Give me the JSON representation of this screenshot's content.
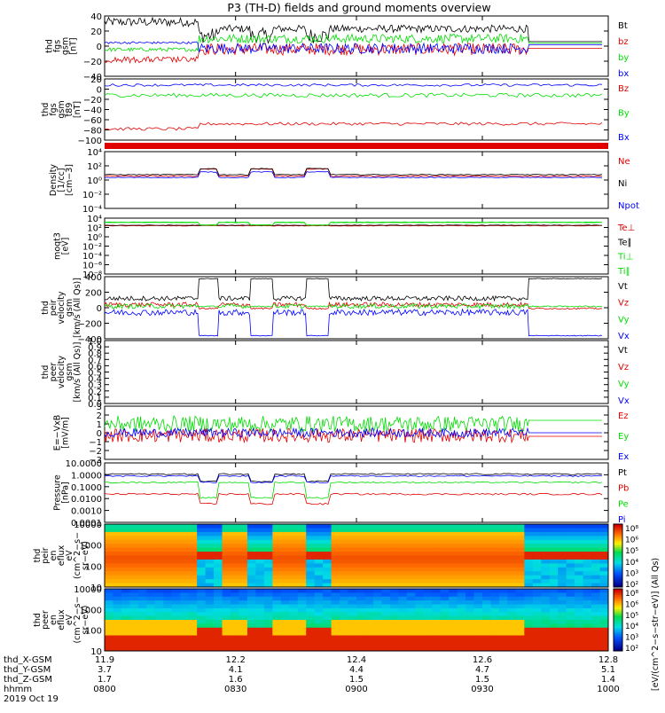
{
  "title": "P3 (TH-D) fields and ground moments overview",
  "colors": {
    "black": "#000000",
    "red": "#e00000",
    "green": "#00dd00",
    "blue": "#0000ff"
  },
  "chart_data": [
    {
      "id": "fgs",
      "type": "line",
      "ylabel": [
        "thd",
        "fgs",
        "gsm",
        "[nT]"
      ],
      "ylim": [
        -40,
        40
      ],
      "yticks": [
        "40",
        "20",
        "0",
        "−20",
        "−40"
      ],
      "series": [
        {
          "name": "Bt",
          "color": "black"
        },
        {
          "name": "bz",
          "color": "red"
        },
        {
          "name": "by",
          "color": "green"
        },
        {
          "name": "bx",
          "color": "blue"
        }
      ]
    },
    {
      "id": "fgs_lmn",
      "type": "line",
      "ylabel": [
        "thd",
        "fgs",
        "gsm",
        "t89",
        "[nT]"
      ],
      "ylim": [
        -100,
        20
      ],
      "yticks": [
        "20",
        "0",
        "−20",
        "−40",
        "−60",
        "−80",
        "−100"
      ],
      "series": [
        {
          "name": "Bz",
          "color": "red"
        },
        {
          "name": "By",
          "color": "green"
        },
        {
          "name": "Bx",
          "color": "blue"
        }
      ]
    },
    {
      "id": "density",
      "type": "line",
      "ylabel": [
        "Density",
        "[1/cc]",
        "[cm−3]"
      ],
      "log": true,
      "ylim": [
        0.0001,
        10000.0
      ],
      "yticks": [
        "10⁴",
        "10²",
        "10⁰",
        "10⁻²",
        "10⁻⁴"
      ],
      "series": [
        {
          "name": "Ne",
          "color": "red"
        },
        {
          "name": "Ni",
          "color": "black"
        },
        {
          "name": "Npot",
          "color": "blue"
        }
      ]
    },
    {
      "id": "temp",
      "type": "line",
      "ylabel": [
        "moqt3",
        "[eV]"
      ],
      "log": true,
      "ylim": [
        1e-08,
        10000.0
      ],
      "yticks": [
        "10⁴",
        "10²",
        "10⁰",
        "10⁻²",
        "10⁻⁴",
        "10⁻⁶",
        "10⁻⁸"
      ],
      "series": [
        {
          "name": "Te⊥",
          "color": "red"
        },
        {
          "name": "Te∥",
          "color": "black"
        },
        {
          "name": "Ti⊥",
          "color": "green"
        },
        {
          "name": "Ti∥",
          "color": "green"
        }
      ]
    },
    {
      "id": "vi",
      "type": "line",
      "ylabel": [
        "thd",
        "peir",
        "velocity",
        "gsm",
        "[km/s (All Qs)]"
      ],
      "ylim": [
        -400,
        400
      ],
      "yticks": [
        "400",
        "200",
        "0",
        "−200",
        "−400"
      ],
      "series": [
        {
          "name": "Vt",
          "color": "black"
        },
        {
          "name": "Vz",
          "color": "red"
        },
        {
          "name": "Vy",
          "color": "green"
        },
        {
          "name": "Vx",
          "color": "blue"
        }
      ]
    },
    {
      "id": "ve",
      "type": "line",
      "ylabel": [
        "thd",
        "peer",
        "velocity",
        "gsm",
        "[km/s (All Qs)]"
      ],
      "ylim": [
        0,
        1
      ],
      "yticks": [
        "1.0",
        "0.9",
        "0.8",
        "0.7",
        "0.6",
        "0.5",
        "0.4",
        "0.3",
        "0.2",
        "0.1",
        "0.0"
      ],
      "series": [
        {
          "name": "Vt",
          "color": "black"
        },
        {
          "name": "Vz",
          "color": "red"
        },
        {
          "name": "Vy",
          "color": "green"
        },
        {
          "name": "Vx",
          "color": "blue"
        }
      ]
    },
    {
      "id": "efield",
      "type": "line",
      "ylabel": [
        "E=−VxB",
        "[mV/m]"
      ],
      "ylim": [
        -3,
        3
      ],
      "yticks": [
        "3",
        "2",
        "1",
        "0",
        "−1",
        "−2",
        "−3"
      ],
      "series": [
        {
          "name": "Ez",
          "color": "red"
        },
        {
          "name": "Ey",
          "color": "green"
        },
        {
          "name": "Ex",
          "color": "blue"
        }
      ]
    },
    {
      "id": "pressure",
      "type": "line",
      "ylabel": [
        "Pressure",
        "[nPa]"
      ],
      "log": true,
      "ylim": [
        0.0001,
        10
      ],
      "yticks": [
        "10.0000",
        "1.0000",
        "0.1000",
        "0.0100",
        "0.0010",
        "0.0001"
      ],
      "series": [
        {
          "name": "Pt",
          "color": "black"
        },
        {
          "name": "Pb",
          "color": "red"
        },
        {
          "name": "Pe",
          "color": "green"
        },
        {
          "name": "Pi",
          "color": "blue"
        }
      ]
    },
    {
      "id": "ion_spec",
      "type": "heatmap",
      "ylabel": [
        "thd",
        "peir",
        "en",
        "eflux",
        "eV",
        "(cm^2−s−",
        "sr−eV)"
      ],
      "log": true,
      "ylim": [
        5,
        30000
      ],
      "yticks": [
        "10000",
        "1000",
        "100",
        "10"
      ],
      "colorbar": [
        "10⁸",
        "10⁶",
        "10⁵",
        "10⁴",
        "10³",
        "10²"
      ]
    },
    {
      "id": "ele_spec",
      "type": "heatmap",
      "ylabel": [
        "thd",
        "peer",
        "en",
        "eflux",
        "eV",
        "(cm^2−s−",
        "sr−eV)"
      ],
      "log": true,
      "ylim": [
        5,
        30000
      ],
      "yticks": [
        "10000",
        "1000",
        "100",
        "10"
      ],
      "colorbar": [
        "10⁸",
        "10⁶",
        "10⁵",
        "10⁴",
        "10³",
        "10²"
      ]
    }
  ],
  "colorbar_label": "[eV/(cm^2−s−str−eV)] (All Qs)",
  "xaxis": {
    "row_labels": [
      "thd_X-GSM",
      "thd_Y-GSM",
      "thd_Z-GSM",
      "hhmm",
      "2019 Oct 19"
    ],
    "ticks": [
      {
        "x": "11.9",
        "y": "3.7",
        "z": "1.7",
        "hhmm": "0800"
      },
      {
        "x": "12.2",
        "y": "4.1",
        "z": "1.6",
        "hhmm": "0830"
      },
      {
        "x": "12.4",
        "y": "4.4",
        "z": "1.5",
        "hhmm": "0900"
      },
      {
        "x": "12.6",
        "y": "4.7",
        "z": "1.5",
        "hhmm": "0930"
      },
      {
        "x": "12.8",
        "y": "5.1",
        "z": "1.4",
        "hhmm": "1000"
      }
    ]
  }
}
